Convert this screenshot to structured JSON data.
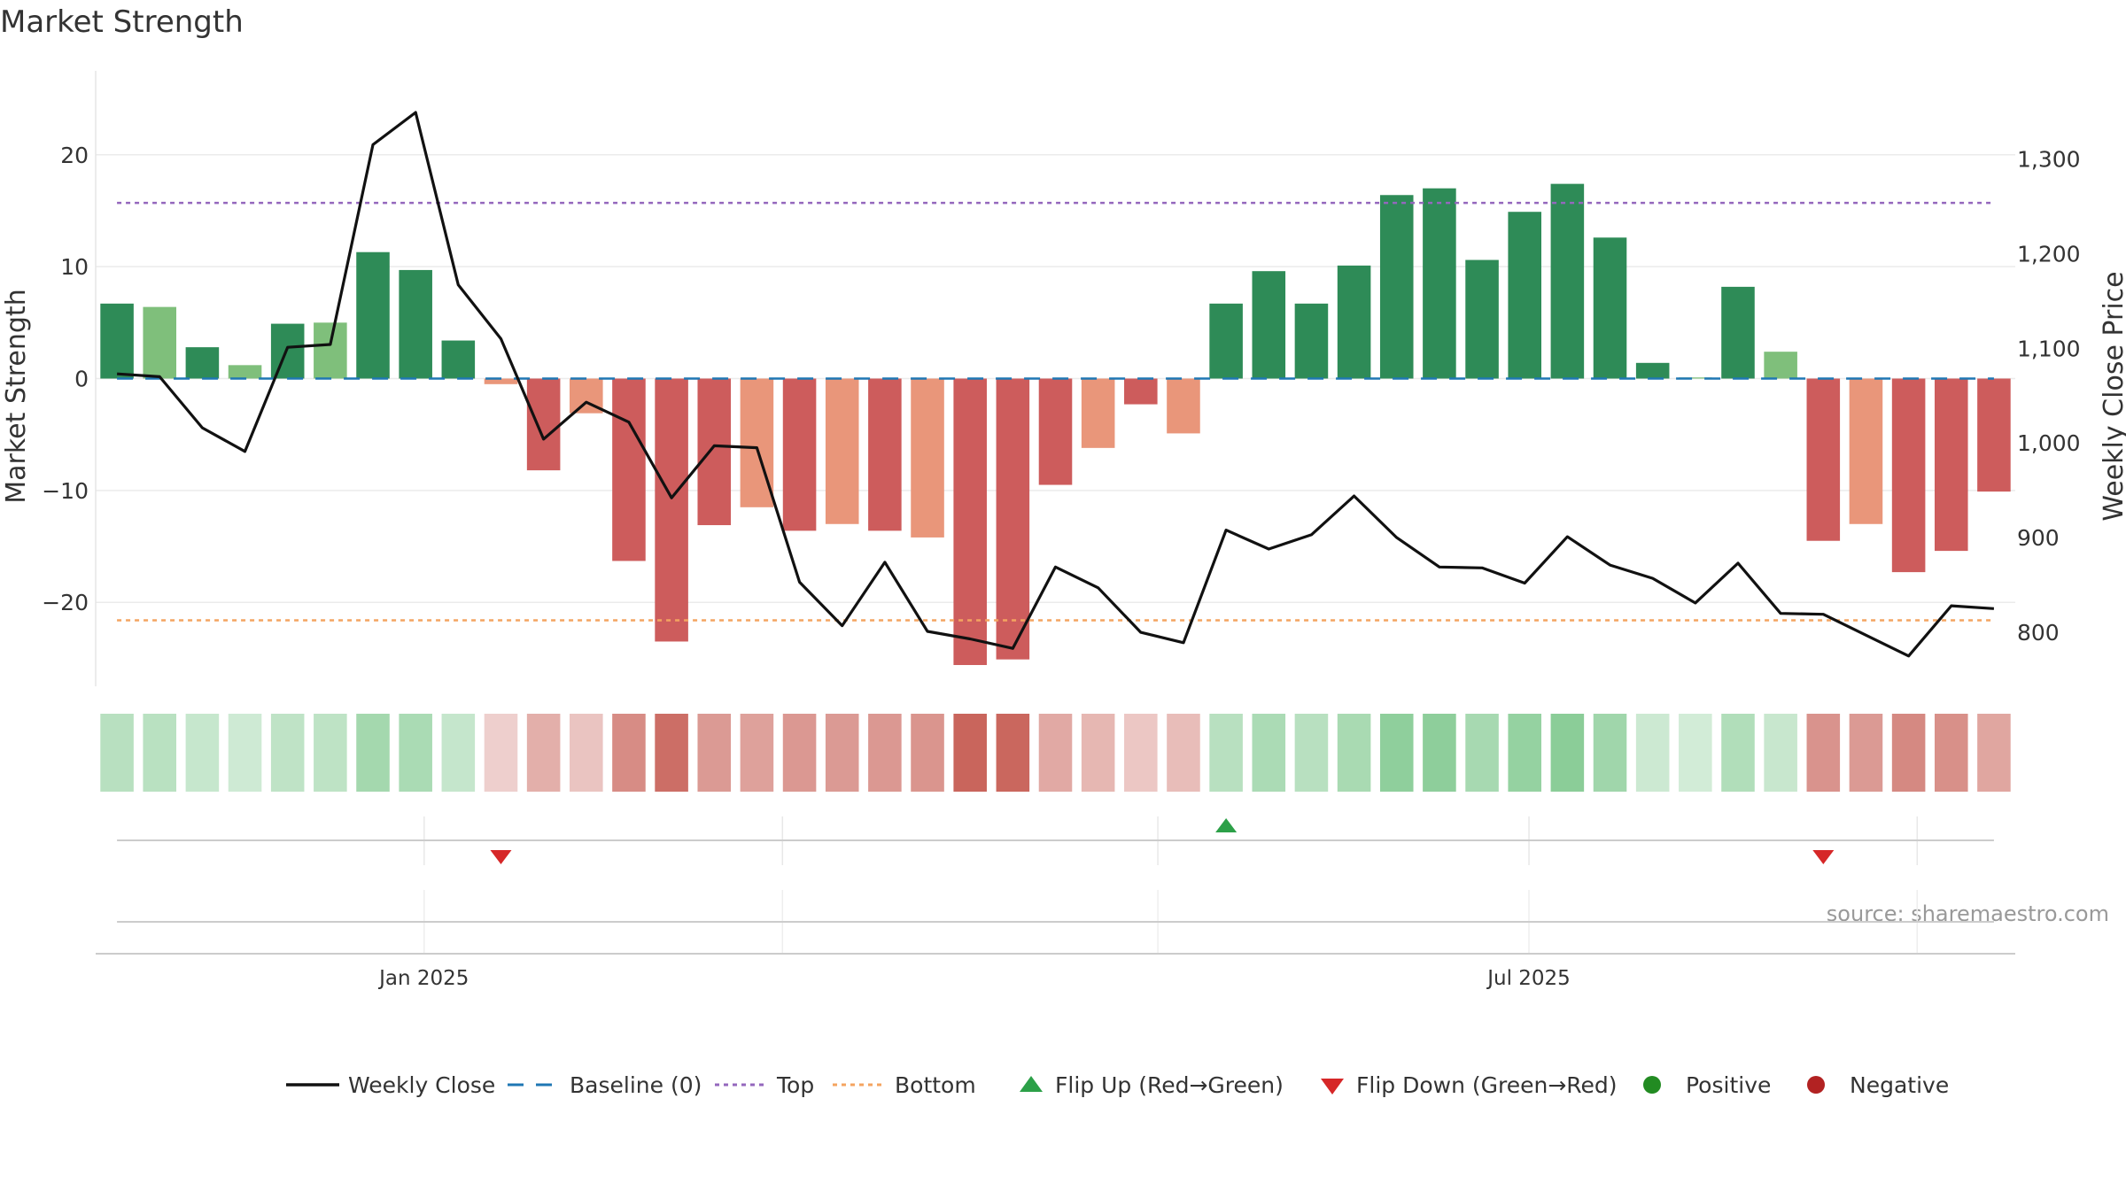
{
  "chart_data": {
    "type": "bar",
    "title": "Market Strength",
    "ylabel": "Market Strength",
    "y2label": "Weekly Close Price",
    "ylim": [
      -27.5,
      27.5
    ],
    "y2lim": [
      743,
      1393
    ],
    "yticks": [
      -20,
      -10,
      0,
      10,
      20
    ],
    "yticklabels": [
      "−20",
      "−10",
      "0",
      "10",
      "20"
    ],
    "y2ticks": [
      800,
      900,
      1000,
      1100,
      1200,
      1300
    ],
    "y2ticklabels": [
      "800",
      "900",
      "1,000",
      "1,100",
      "1,200",
      "1,300"
    ],
    "xticks": [
      {
        "index": 7.2,
        "label": "Jan 2025"
      },
      {
        "index": 33.1,
        "label": "Jul 2025"
      }
    ],
    "minor_xticks": [
      15.6,
      24.4,
      42.2
    ],
    "top_line": 15.7,
    "bottom_line": -21.6,
    "baseline": 0,
    "strength": [
      6.7,
      6.4,
      2.8,
      1.2,
      4.9,
      5.0,
      11.3,
      9.7,
      3.4,
      -0.5,
      -8.2,
      -3.1,
      -16.3,
      -23.5,
      -13.1,
      -11.5,
      -13.6,
      -13.0,
      -13.6,
      -14.2,
      -25.6,
      -25.1,
      -9.5,
      -6.2,
      -2.3,
      -4.9,
      6.7,
      9.6,
      6.7,
      10.1,
      16.4,
      17.0,
      10.6,
      14.9,
      17.4,
      12.6,
      1.4,
      0.1,
      8.2,
      2.4,
      -14.5,
      -13.0,
      -17.3,
      -15.4,
      -10.1
    ],
    "weekly_close": [
      1073,
      1070,
      1016,
      991,
      1101,
      1104,
      1315,
      1349,
      1167,
      1110,
      1004,
      1043,
      1022,
      942,
      997,
      995,
      853,
      807,
      874,
      801,
      793,
      783,
      869,
      847,
      800,
      789,
      908,
      888,
      903,
      944,
      900,
      869,
      868,
      852,
      901,
      871,
      857,
      831,
      873,
      820,
      819,
      797,
      775,
      828,
      825
    ],
    "flip_up": [
      26
    ],
    "flip_down": [
      9,
      40
    ],
    "colors": {
      "strong_pos": "#2e8b57",
      "weak_pos": "#7fbf7b",
      "strong_neg": "#cd5c5c",
      "weak_neg": "#e9967a",
      "heat_pos": "#6abf7b",
      "heat_neg": "#c9655c",
      "top": "#9467bd",
      "bottom": "#f4a460",
      "baseline": "#1f77b4",
      "close": "#111111",
      "flip_up": "#2ca048",
      "flip_down": "#d62728",
      "positive": "#228b22",
      "negative": "#b22222"
    },
    "legend": [
      {
        "key": "close",
        "label": "Weekly Close"
      },
      {
        "key": "baseline",
        "label": "Baseline (0)"
      },
      {
        "key": "top",
        "label": "Top"
      },
      {
        "key": "bottom",
        "label": "Bottom"
      },
      {
        "key": "flip_up",
        "label": "Flip Up (Red→Green)"
      },
      {
        "key": "flip_down",
        "label": "Flip Down (Green→Red)"
      },
      {
        "key": "positive",
        "label": "Positive"
      },
      {
        "key": "negative",
        "label": "Negative"
      }
    ],
    "source": "source: sharemaestro.com"
  }
}
